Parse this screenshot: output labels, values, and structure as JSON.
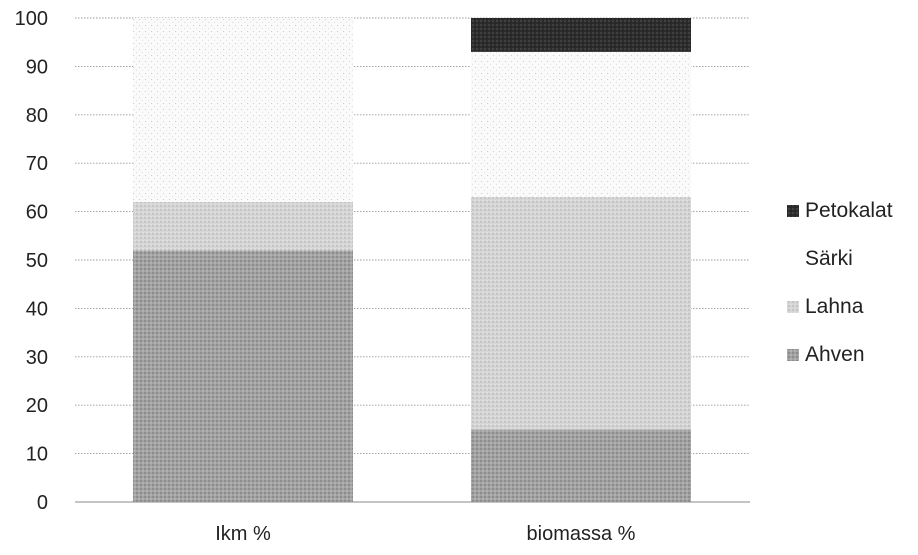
{
  "chart_data": {
    "type": "bar",
    "stacked": true,
    "categories": [
      "Ikm %",
      "biomassa %"
    ],
    "series": [
      {
        "name": "Ahven",
        "values": [
          52,
          15
        ],
        "color": "#9a9a9a",
        "pattern": "dense-dots"
      },
      {
        "name": "Lahna",
        "values": [
          10,
          48
        ],
        "color": "#cfcfcf",
        "pattern": "medium-dots"
      },
      {
        "name": "Särki",
        "values": [
          38,
          30
        ],
        "color": "#f4f4f4",
        "pattern": "sparse-dots"
      },
      {
        "name": "Petokalat",
        "values": [
          0,
          7
        ],
        "color": "#2e2e2e",
        "pattern": "dark"
      }
    ],
    "ylim": [
      0,
      100
    ],
    "yticks": [
      0,
      10,
      20,
      30,
      40,
      50,
      60,
      70,
      80,
      90,
      100
    ],
    "grid": true,
    "legend_position": "right",
    "legend_order": [
      "Petokalat",
      "Särki",
      "Lahna",
      "Ahven"
    ],
    "title": "",
    "xlabel": "",
    "ylabel": ""
  }
}
